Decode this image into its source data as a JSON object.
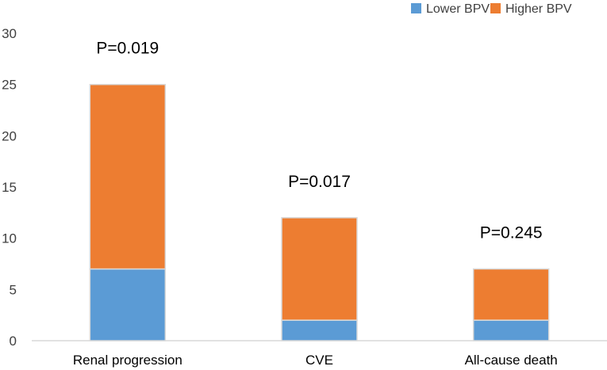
{
  "chart_data": {
    "type": "bar",
    "stacked": true,
    "categories": [
      "Renal progression",
      "CVE",
      "All-cause death"
    ],
    "series": [
      {
        "name": "Lower BPV",
        "values": [
          7,
          2,
          2
        ],
        "color": "#5B9BD5"
      },
      {
        "name": "Higher BPV",
        "values": [
          18,
          10,
          5
        ],
        "color": "#ED7D31"
      }
    ],
    "annotations": [
      "P=0.019",
      "P=0.017",
      "P=0.245"
    ],
    "ylim": [
      0,
      30
    ],
    "yticks": [
      0,
      5,
      10,
      15,
      20,
      25,
      30
    ],
    "title": "",
    "xlabel": "",
    "ylabel": "",
    "legend_position": "top-right"
  }
}
